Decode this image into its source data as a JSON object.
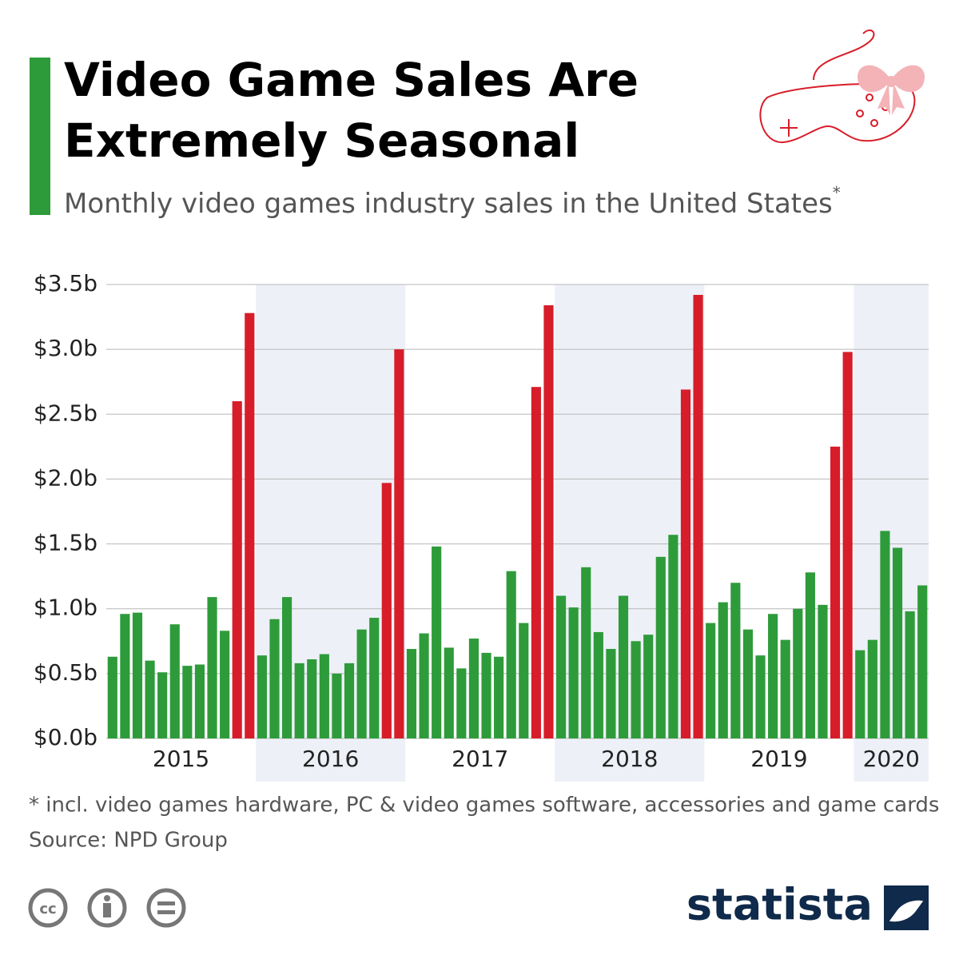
{
  "chart_data": {
    "type": "bar",
    "title": "Video Game Sales Are Extremely Seasonal",
    "title_lines": [
      "Video Game Sales Are",
      "Extremely Seasonal"
    ],
    "subtitle": "Monthly video games industry sales in the United States",
    "subtitle_mark": "*",
    "footnote": "* incl. video games hardware, PC & video games software, accessories and game cards",
    "source": "Source: NPD Group",
    "brand": "statista",
    "categories": [
      "2015",
      null,
      null,
      null,
      null,
      null,
      null,
      null,
      null,
      null,
      null,
      null,
      "2016",
      null,
      null,
      null,
      null,
      null,
      null,
      null,
      null,
      null,
      null,
      null,
      "2017",
      null,
      null,
      null,
      null,
      null,
      null,
      null,
      null,
      null,
      null,
      null,
      "2018",
      null,
      null,
      null,
      null,
      null,
      null,
      null,
      null,
      null,
      null,
      null,
      "2019",
      null,
      null,
      null,
      null,
      null,
      null,
      null,
      null,
      null,
      null,
      null,
      "2020",
      null,
      null,
      null,
      null,
      null
    ],
    "values": [
      0.63,
      0.96,
      0.97,
      0.6,
      0.51,
      0.88,
      0.56,
      0.57,
      1.09,
      0.83,
      2.6,
      3.28,
      0.64,
      0.92,
      1.09,
      0.58,
      0.61,
      0.65,
      0.5,
      0.58,
      0.84,
      0.93,
      1.97,
      3.0,
      0.69,
      0.81,
      1.48,
      0.7,
      0.54,
      0.77,
      0.66,
      0.63,
      1.29,
      0.89,
      2.71,
      3.34,
      1.1,
      1.01,
      1.32,
      0.82,
      0.69,
      1.1,
      0.75,
      0.8,
      1.4,
      1.57,
      2.69,
      3.42,
      0.89,
      1.05,
      1.2,
      0.84,
      0.64,
      0.96,
      0.76,
      1.0,
      1.28,
      1.03,
      2.25,
      2.98,
      0.68,
      0.76,
      1.6,
      1.47,
      0.98,
      1.18
    ],
    "colors": [
      "#2e9b3a",
      "#2e9b3a",
      "#2e9b3a",
      "#2e9b3a",
      "#2e9b3a",
      "#2e9b3a",
      "#2e9b3a",
      "#2e9b3a",
      "#2e9b3a",
      "#2e9b3a",
      "#d71d29",
      "#d71d29",
      "#2e9b3a",
      "#2e9b3a",
      "#2e9b3a",
      "#2e9b3a",
      "#2e9b3a",
      "#2e9b3a",
      "#2e9b3a",
      "#2e9b3a",
      "#2e9b3a",
      "#2e9b3a",
      "#d71d29",
      "#d71d29",
      "#2e9b3a",
      "#2e9b3a",
      "#2e9b3a",
      "#2e9b3a",
      "#2e9b3a",
      "#2e9b3a",
      "#2e9b3a",
      "#2e9b3a",
      "#2e9b3a",
      "#2e9b3a",
      "#d71d29",
      "#d71d29",
      "#2e9b3a",
      "#2e9b3a",
      "#2e9b3a",
      "#2e9b3a",
      "#2e9b3a",
      "#2e9b3a",
      "#2e9b3a",
      "#2e9b3a",
      "#2e9b3a",
      "#2e9b3a",
      "#d71d29",
      "#d71d29",
      "#2e9b3a",
      "#2e9b3a",
      "#2e9b3a",
      "#2e9b3a",
      "#2e9b3a",
      "#2e9b3a",
      "#2e9b3a",
      "#2e9b3a",
      "#2e9b3a",
      "#2e9b3a",
      "#d71d29",
      "#d71d29",
      "#2e9b3a",
      "#2e9b3a",
      "#2e9b3a",
      "#2e9b3a",
      "#2e9b3a",
      "#2e9b3a"
    ],
    "ylim": [
      0,
      3.5
    ],
    "yticks": [
      {
        "value": 0,
        "label": "$0.0b"
      },
      {
        "value": 0.5,
        "label": "$0.5b"
      },
      {
        "value": 1,
        "label": "$1.0b"
      },
      {
        "value": 1.5,
        "label": "$1.5b"
      },
      {
        "value": 2,
        "label": "$2.0b"
      },
      {
        "value": 2.5,
        "label": "$2.5b"
      },
      {
        "value": 3,
        "label": "$3.0b"
      },
      {
        "value": 3.5,
        "label": "$3.5b"
      }
    ],
    "grid": true
  }
}
